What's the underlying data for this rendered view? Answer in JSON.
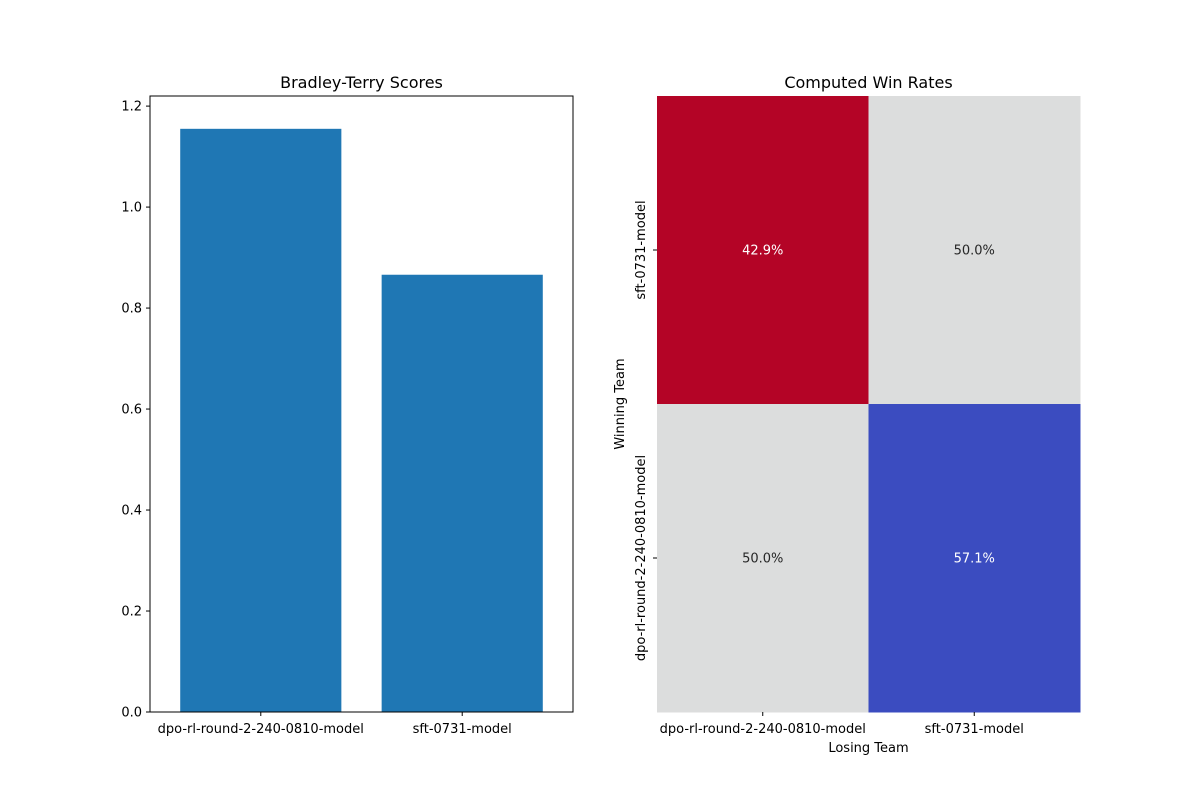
{
  "chart_data": [
    {
      "type": "bar",
      "title": "Bradley-Terry Scores",
      "xlabel": "",
      "ylabel": "",
      "categories": [
        "dpo-rl-round-2-240-0810-model",
        "sft-0731-model"
      ],
      "values": [
        1.155,
        0.866
      ],
      "ylim": [
        0,
        1.22
      ],
      "yticks": [
        "0.0",
        "0.2",
        "0.4",
        "0.6",
        "0.8",
        "1.0",
        "1.2"
      ],
      "bar_color": "#1f77b4",
      "grid": false
    },
    {
      "type": "heatmap",
      "title": "Computed Win Rates",
      "xlabel": "Losing Team",
      "ylabel": "Winning Team",
      "x_categories": [
        "dpo-rl-round-2-240-0810-model",
        "sft-0731-model"
      ],
      "y_categories": [
        "sft-0731-model",
        "dpo-rl-round-2-240-0810-model"
      ],
      "values": [
        [
          0.429,
          0.5
        ],
        [
          0.5,
          0.571
        ]
      ],
      "cell_labels": [
        [
          "42.9%",
          "50.0%"
        ],
        [
          "50.0%",
          "57.1%"
        ]
      ],
      "cell_colors": [
        [
          "#b40426",
          "#dcdddd"
        ],
        [
          "#dcdddd",
          "#3b4cc0"
        ]
      ],
      "label_colors": [
        [
          "#ffffff",
          "#262626"
        ],
        [
          "#262626",
          "#ffffff"
        ]
      ],
      "colorbar": false
    }
  ]
}
